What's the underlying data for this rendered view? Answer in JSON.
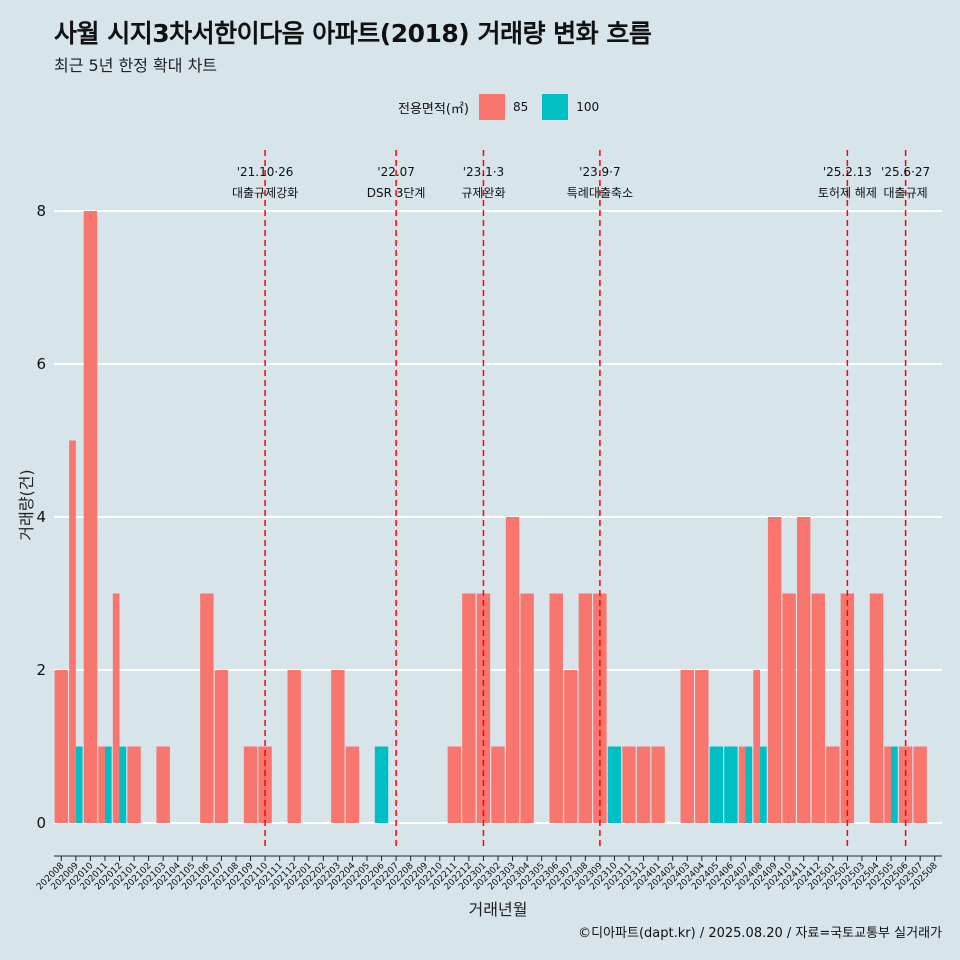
{
  "title": "사월 시지3차서한이다음 아파트(2018) 거래량 변화 흐름",
  "subtitle": "최근 5년 한정 확대 차트",
  "caption": "©디아파트(dapt.kr) / 2025.08.20 / 자료=국토교통부 실거래가",
  "legend": {
    "title": "전용면적(㎡)",
    "items": [
      {
        "label": "85",
        "color": "#f8766d"
      },
      {
        "label": "100",
        "color": "#00bfc4"
      }
    ]
  },
  "chart_data": {
    "type": "bar",
    "xlabel": "거래년월",
    "ylabel": "거래량(건)",
    "ylim": [
      0,
      8
    ],
    "yticks": [
      0,
      2,
      4,
      6,
      8
    ],
    "grid": true,
    "legend_position": "top",
    "categories": [
      "202008",
      "202009",
      "202010",
      "202011",
      "202012",
      "202101",
      "202102",
      "202103",
      "202104",
      "202105",
      "202106",
      "202107",
      "202108",
      "202109",
      "202110",
      "202111",
      "202112",
      "202201",
      "202202",
      "202203",
      "202204",
      "202205",
      "202206",
      "202207",
      "202208",
      "202209",
      "202210",
      "202211",
      "202212",
      "202301",
      "202302",
      "202303",
      "202304",
      "202305",
      "202306",
      "202307",
      "202308",
      "202309",
      "202310",
      "202311",
      "202312",
      "202401",
      "202402",
      "202403",
      "202404",
      "202405",
      "202406",
      "202407",
      "202408",
      "202409",
      "202410",
      "202411",
      "202412",
      "202501",
      "202502",
      "202503",
      "202504",
      "202505",
      "202506",
      "202507",
      "202508"
    ],
    "series": [
      {
        "name": "85",
        "color": "#f8766d",
        "values": [
          2,
          5,
          8,
          1,
          3,
          1,
          0,
          1,
          0,
          0,
          3,
          2,
          0,
          1,
          1,
          0,
          2,
          0,
          0,
          2,
          1,
          0,
          0,
          0,
          0,
          0,
          0,
          1,
          3,
          3,
          1,
          4,
          3,
          0,
          3,
          2,
          3,
          3,
          0,
          1,
          1,
          1,
          0,
          2,
          2,
          0,
          0,
          1,
          2,
          4,
          3,
          4,
          3,
          1,
          3,
          0,
          3,
          1,
          1,
          1,
          0
        ]
      },
      {
        "name": "100",
        "color": "#00bfc4",
        "values": [
          0,
          1,
          0,
          1,
          1,
          0,
          0,
          0,
          0,
          0,
          0,
          0,
          0,
          0,
          0,
          0,
          0,
          0,
          0,
          0,
          0,
          0,
          1,
          0,
          0,
          0,
          0,
          0,
          0,
          0,
          0,
          0,
          0,
          0,
          0,
          0,
          0,
          0,
          1,
          0,
          0,
          0,
          0,
          0,
          0,
          1,
          1,
          1,
          1,
          0,
          0,
          0,
          0,
          0,
          0,
          0,
          0,
          1,
          0,
          0,
          0
        ]
      }
    ],
    "events": [
      {
        "date": "'21.10·26",
        "label": "대출규제강화",
        "month": "202110"
      },
      {
        "date": "'22.07",
        "label": "DSR 3단계",
        "month": "202207"
      },
      {
        "date": "'23.1·3",
        "label": "규제완화",
        "month": "202301"
      },
      {
        "date": "'23.9·7",
        "label": "특례대출축소",
        "month": "202309"
      },
      {
        "date": "'25.2.13",
        "label": "토허제 해제",
        "month": "202502"
      },
      {
        "date": "'25.6·27",
        "label": "대출규제",
        "month": "202506"
      }
    ]
  }
}
